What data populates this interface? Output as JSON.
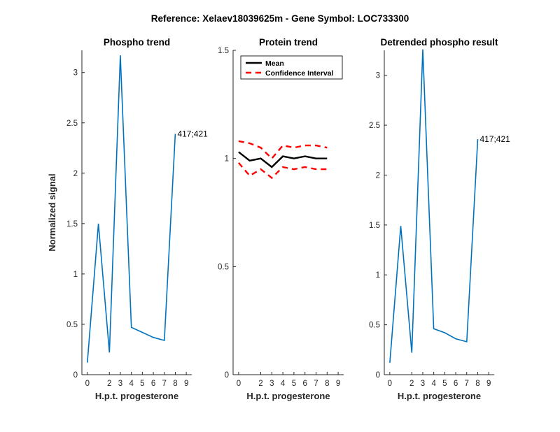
{
  "figure_title": "Reference:  Xelaev18039625m - Gene Symbol:  LOC733300",
  "colors": {
    "phospho": "#0072BD",
    "mean": "#000000",
    "ci": "#FF0000",
    "axis": "#262626"
  },
  "chart_data": [
    {
      "type": "line",
      "title": "Phospho trend",
      "xlabel": "H.p.t. progesterone",
      "ylabel": "Normalized signal",
      "xlim": [
        -0.5,
        9.5
      ],
      "ylim": [
        0,
        3.22
      ],
      "x_ticks": [
        0,
        2,
        3,
        4,
        5,
        6,
        7,
        8,
        9
      ],
      "y_ticks": [
        0,
        0.5,
        1,
        1.5,
        2,
        2.5,
        3
      ],
      "series": [
        {
          "x": [
            0,
            1,
            2,
            3,
            4,
            5,
            6,
            7,
            8
          ],
          "values": [
            0.12,
            1.5,
            0.22,
            3.17,
            0.47,
            0.42,
            0.37,
            0.34,
            2.39
          ]
        }
      ],
      "annotations": [
        {
          "text": "417;421",
          "x": 8,
          "y": 2.39
        }
      ]
    },
    {
      "type": "line",
      "title": "Protein trend",
      "xlabel": "H.p.t. progesterone",
      "ylabel": "",
      "xlim": [
        -0.5,
        9.5
      ],
      "ylim": [
        0,
        1.5
      ],
      "x_ticks": [
        0,
        2,
        3,
        4,
        5,
        6,
        7,
        8,
        9
      ],
      "y_ticks": [
        0,
        0.5,
        1,
        1.5
      ],
      "legend_position": "top-right",
      "series": [
        {
          "name": "Mean",
          "style": "solid",
          "x": [
            0,
            1,
            2,
            3,
            4,
            5,
            6,
            7,
            8
          ],
          "values": [
            1.03,
            0.99,
            1.0,
            0.96,
            1.01,
            1.0,
            1.01,
            1.0,
            1.0
          ]
        },
        {
          "name": "Confidence Interval",
          "style": "dashed",
          "x": [
            0,
            1,
            2,
            3,
            4,
            5,
            6,
            7,
            8
          ],
          "values": [
            1.08,
            1.07,
            1.05,
            1.0,
            1.06,
            1.05,
            1.06,
            1.06,
            1.05
          ]
        },
        {
          "name": "",
          "style": "dashed",
          "x": [
            0,
            1,
            2,
            3,
            4,
            5,
            6,
            7,
            8
          ],
          "values": [
            0.98,
            0.92,
            0.95,
            0.91,
            0.96,
            0.95,
            0.96,
            0.95,
            0.95
          ]
        }
      ]
    },
    {
      "type": "line",
      "title": "Detrended phospho result",
      "xlabel": "H.p.t. progesterone",
      "ylabel": "",
      "xlim": [
        -0.5,
        9.5
      ],
      "ylim": [
        0,
        3.25
      ],
      "x_ticks": [
        0,
        2,
        3,
        4,
        5,
        6,
        7,
        8,
        9
      ],
      "y_ticks": [
        0,
        0.5,
        1,
        1.5,
        2,
        2.5,
        3
      ],
      "series": [
        {
          "x": [
            0,
            1,
            2,
            3,
            4,
            5,
            6,
            7,
            8
          ],
          "values": [
            0.12,
            1.49,
            0.22,
            3.26,
            0.46,
            0.42,
            0.36,
            0.33,
            2.36
          ]
        }
      ],
      "annotations": [
        {
          "text": "417;421",
          "x": 8,
          "y": 2.36
        }
      ]
    }
  ]
}
